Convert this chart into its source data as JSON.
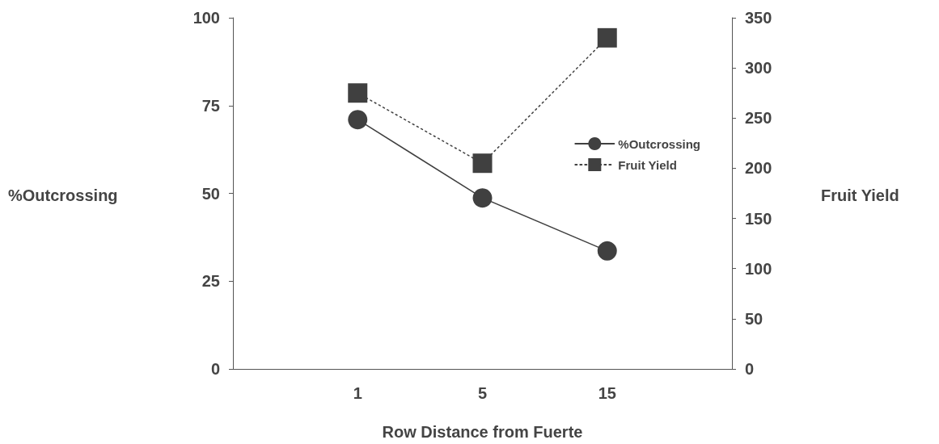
{
  "chart_data": {
    "type": "line",
    "xlabel": "Row Distance from Fuerte",
    "ylabel": "%Outcrossing",
    "y2label": "Fruit Yield",
    "categories": [
      "1",
      "5",
      "15"
    ],
    "series": [
      {
        "name": "%Outcrossing",
        "color": "#404040",
        "values": [
          71,
          48.7,
          33.6
        ],
        "marker": "circle",
        "line_style": "solid"
      },
      {
        "name": "Fruit Yield",
        "color": "#404040",
        "values": [
          275,
          205,
          330
        ],
        "axis": "y2",
        "marker": "square",
        "line_style": "dotted"
      }
    ],
    "ylim": [
      0,
      100
    ],
    "yticks": [
      0,
      25,
      50,
      75,
      100
    ],
    "y2lim": [
      0,
      350
    ],
    "y2ticks": [
      0,
      50,
      100,
      150,
      200,
      250,
      300,
      350
    ],
    "grid": false,
    "legend": "right"
  }
}
